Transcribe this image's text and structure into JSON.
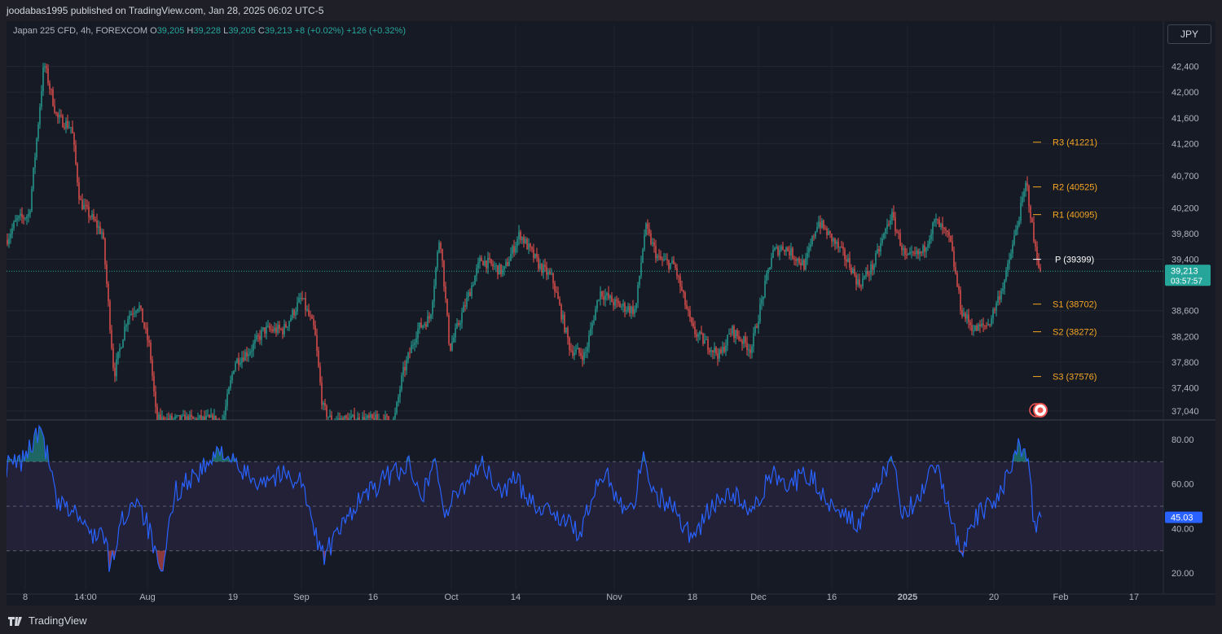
{
  "header": {
    "published": "joodabas1995 published on TradingView.com, Jan 28, 2025 06:02 UTC-5"
  },
  "legend": {
    "symbol": "Japan 225 CFD, 4h, FOREXCOM",
    "o_label": "O",
    "o_value": "39,205",
    "h_label": "H",
    "h_value": "39,228",
    "l_label": "L",
    "l_value": "39,205",
    "c_label": "C",
    "c_value": "39,213",
    "change": "+8 (+0.02%)",
    "change2": "+126 (+0.32%)"
  },
  "currency_button": "JPY",
  "price_tag": {
    "price": "39,213",
    "countdown": "03:57:57"
  },
  "rsi_tag": "45.03",
  "brand": "TradingView",
  "colors": {
    "up": "#26a69a",
    "down": "#ef5350",
    "pivot": "#f5a623",
    "rsi": "#2962ff",
    "background": "#161a25"
  },
  "chart_data": [
    {
      "type": "candlestick",
      "title": "Japan 225 CFD, 4h, FOREXCOM",
      "x_ticks": [
        "8",
        "14:00",
        "Aug",
        "19",
        "Sep",
        "16",
        "Oct",
        "14",
        "Nov",
        "18",
        "Dec",
        "16",
        "2025",
        "20",
        "Feb",
        "17"
      ],
      "y_ticks": [
        "42,400",
        "42,000",
        "41,600",
        "41,200",
        "40,700",
        "40,200",
        "39,800",
        "39,400",
        "38,600",
        "38,200",
        "37,800",
        "37,400",
        "37,040"
      ],
      "ylim": [
        36900,
        42800
      ],
      "last_price": 39213,
      "pivots": [
        {
          "label": "R3 (41221)",
          "value": 41221
        },
        {
          "label": "R2 (40525)",
          "value": 40525
        },
        {
          "label": "R1 (40095)",
          "value": 40095
        },
        {
          "label": "P (39399)",
          "value": 39399
        },
        {
          "label": "S1 (38702)",
          "value": 38702
        },
        {
          "label": "S2 (38272)",
          "value": 38272
        },
        {
          "label": "S3 (37576)",
          "value": 37576
        }
      ],
      "close_path_keypoints": [
        [
          0,
          39700
        ],
        [
          12,
          40000
        ],
        [
          28,
          40100
        ],
        [
          46,
          42450
        ],
        [
          62,
          41600
        ],
        [
          80,
          41450
        ],
        [
          90,
          40300
        ],
        [
          118,
          39800
        ],
        [
          132,
          37600
        ],
        [
          148,
          38500
        ],
        [
          162,
          38700
        ],
        [
          176,
          38000
        ],
        [
          184,
          36900
        ],
        [
          266,
          36900
        ],
        [
          280,
          37800
        ],
        [
          300,
          38000
        ],
        [
          316,
          38300
        ],
        [
          340,
          38300
        ],
        [
          362,
          38800
        ],
        [
          378,
          38300
        ],
        [
          388,
          37100
        ],
        [
          398,
          36900
        ],
        [
          476,
          36900
        ],
        [
          486,
          37600
        ],
        [
          504,
          38300
        ],
        [
          520,
          38500
        ],
        [
          532,
          39800
        ],
        [
          544,
          38000
        ],
        [
          566,
          38800
        ],
        [
          582,
          39400
        ],
        [
          610,
          39200
        ],
        [
          630,
          39800
        ],
        [
          654,
          39300
        ],
        [
          670,
          39100
        ],
        [
          692,
          38000
        ],
        [
          710,
          37900
        ],
        [
          728,
          38900
        ],
        [
          748,
          38700
        ],
        [
          772,
          38600
        ],
        [
          784,
          39900
        ],
        [
          800,
          39400
        ],
        [
          820,
          39300
        ],
        [
          842,
          38300
        ],
        [
          858,
          38100
        ],
        [
          876,
          37900
        ],
        [
          890,
          38300
        ],
        [
          914,
          38000
        ],
        [
          940,
          39500
        ],
        [
          954,
          39600
        ],
        [
          980,
          39300
        ],
        [
          996,
          40000
        ],
        [
          1020,
          39600
        ],
        [
          1036,
          39300
        ],
        [
          1046,
          39000
        ],
        [
          1064,
          39300
        ],
        [
          1086,
          40100
        ],
        [
          1104,
          39400
        ],
        [
          1124,
          39500
        ],
        [
          1140,
          40000
        ],
        [
          1158,
          39700
        ],
        [
          1172,
          38600
        ],
        [
          1188,
          38300
        ],
        [
          1206,
          38400
        ],
        [
          1226,
          39100
        ],
        [
          1240,
          39900
        ],
        [
          1252,
          40600
        ],
        [
          1262,
          39600
        ],
        [
          1270,
          39213
        ]
      ]
    },
    {
      "type": "line",
      "title": "RSI",
      "y_ticks": [
        "80.00",
        "60.00",
        "40.00",
        "20.00"
      ],
      "ylim": [
        12,
        88
      ],
      "band": [
        30,
        70
      ],
      "midline": 50,
      "last_value": 45.03,
      "keypoints": [
        [
          0,
          68
        ],
        [
          18,
          70
        ],
        [
          42,
          85
        ],
        [
          52,
          70
        ],
        [
          62,
          50
        ],
        [
          84,
          48
        ],
        [
          100,
          38
        ],
        [
          118,
          38
        ],
        [
          128,
          22
        ],
        [
          140,
          42
        ],
        [
          160,
          55
        ],
        [
          176,
          38
        ],
        [
          190,
          16
        ],
        [
          206,
          56
        ],
        [
          224,
          62
        ],
        [
          246,
          68
        ],
        [
          266,
          76
        ],
        [
          284,
          66
        ],
        [
          308,
          62
        ],
        [
          340,
          64
        ],
        [
          362,
          62
        ],
        [
          376,
          40
        ],
        [
          390,
          28
        ],
        [
          408,
          38
        ],
        [
          430,
          52
        ],
        [
          452,
          58
        ],
        [
          476,
          66
        ],
        [
          496,
          68
        ],
        [
          512,
          56
        ],
        [
          526,
          72
        ],
        [
          538,
          46
        ],
        [
          558,
          58
        ],
        [
          582,
          70
        ],
        [
          604,
          56
        ],
        [
          622,
          62
        ],
        [
          638,
          56
        ],
        [
          652,
          50
        ],
        [
          672,
          48
        ],
        [
          688,
          42
        ],
        [
          704,
          38
        ],
        [
          722,
          56
        ],
        [
          736,
          66
        ],
        [
          752,
          52
        ],
        [
          770,
          50
        ],
        [
          780,
          72
        ],
        [
          798,
          55
        ],
        [
          818,
          50
        ],
        [
          842,
          36
        ],
        [
          866,
          50
        ],
        [
          890,
          56
        ],
        [
          916,
          46
        ],
        [
          940,
          66
        ],
        [
          960,
          60
        ],
        [
          986,
          64
        ],
        [
          1008,
          52
        ],
        [
          1030,
          48
        ],
        [
          1046,
          40
        ],
        [
          1066,
          56
        ],
        [
          1086,
          72
        ],
        [
          1100,
          48
        ],
        [
          1120,
          52
        ],
        [
          1140,
          68
        ],
        [
          1156,
          50
        ],
        [
          1172,
          30
        ],
        [
          1188,
          44
        ],
        [
          1212,
          52
        ],
        [
          1226,
          62
        ],
        [
          1244,
          78
        ],
        [
          1254,
          68
        ],
        [
          1262,
          40
        ],
        [
          1270,
          45.03
        ]
      ]
    }
  ]
}
